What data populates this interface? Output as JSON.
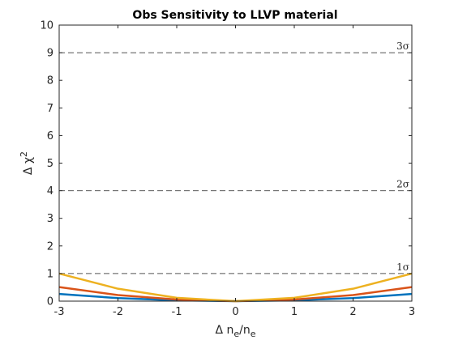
{
  "chart_data": {
    "type": "line",
    "title": "Obs Sensitivity to LLVP material",
    "xlabel": "Δ n_e/n_e",
    "ylabel": "Δ χ²",
    "xlim": [
      -3,
      3
    ],
    "ylim": [
      0,
      10
    ],
    "x_ticks": [
      "-3",
      "-2",
      "-1",
      "0",
      "1",
      "2",
      "3"
    ],
    "y_ticks": [
      "0",
      "1",
      "2",
      "3",
      "4",
      "5",
      "6",
      "7",
      "8",
      "9",
      "10"
    ],
    "grid": false,
    "box": true,
    "reference_lines": [
      {
        "y": 1,
        "label": "1σ",
        "color": "#555555",
        "style": "dashed"
      },
      {
        "y": 4,
        "label": "2σ",
        "color": "#555555",
        "style": "dashed"
      },
      {
        "y": 9,
        "label": "3σ",
        "color": "#555555",
        "style": "dashed"
      }
    ],
    "x": [
      -3,
      -2,
      -1,
      0,
      1,
      2,
      3
    ],
    "series": [
      {
        "color": "#0072bd",
        "values": [
          0.26,
          0.11,
          0.03,
          0,
          0.03,
          0.11,
          0.26
        ]
      },
      {
        "color": "#d95319",
        "values": [
          0.51,
          0.22,
          0.06,
          0,
          0.06,
          0.22,
          0.51
        ]
      },
      {
        "color": "#edb120",
        "values": [
          1.0,
          0.45,
          0.12,
          0,
          0.12,
          0.45,
          1.0
        ]
      }
    ]
  }
}
